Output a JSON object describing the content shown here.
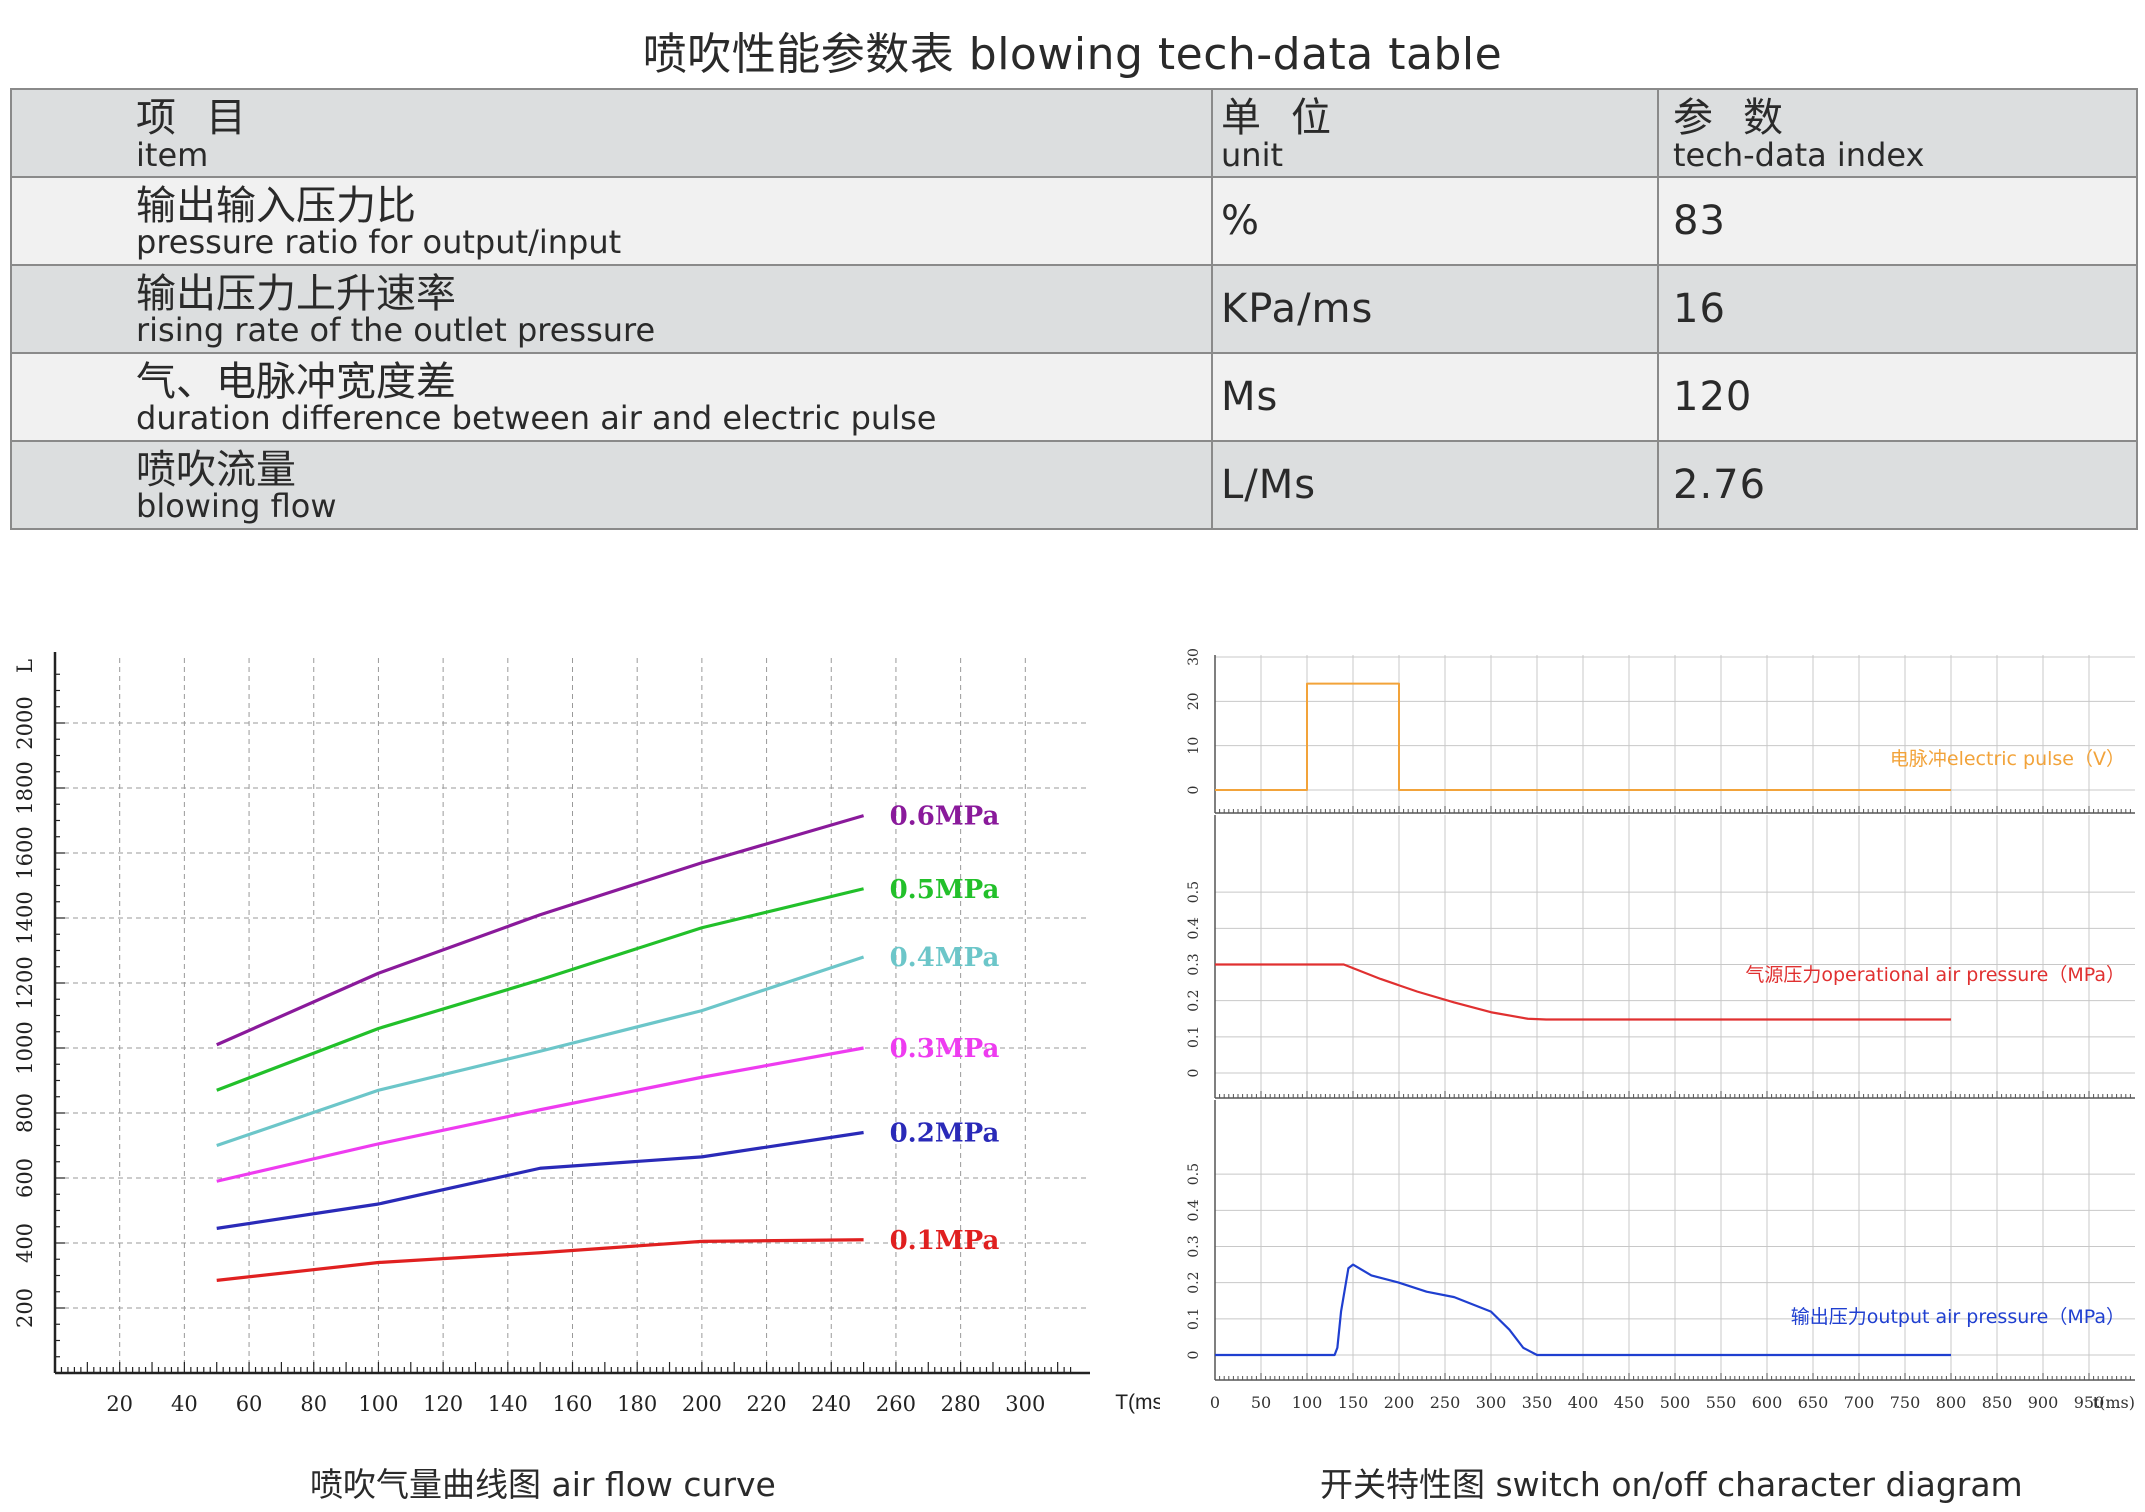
{
  "page": {
    "title": "喷吹性能参数表  blowing tech-data table"
  },
  "table": {
    "header": {
      "item_cn": "项目",
      "item_en": "item",
      "unit_cn": "单位",
      "unit_en": "unit",
      "value_cn": "参数",
      "value_en": "tech-data index"
    },
    "rows": [
      {
        "name_cn": "输出输入压力比",
        "name_en": "pressure ratio for output/input",
        "unit": "%",
        "value": "83"
      },
      {
        "name_cn": "输出压力上升速率",
        "name_en": "rising rate of the outlet pressure",
        "unit": "KPa/ms",
        "value": "16"
      },
      {
        "name_cn": "气、电脉冲宽度差",
        "name_en": "duration difference between air and electric pulse",
        "unit": "Ms",
        "value": "120"
      },
      {
        "name_cn": "喷吹流量",
        "name_en": "blowing flow",
        "unit": "L/Ms",
        "value": "2.76"
      }
    ]
  },
  "captions": {
    "left": "喷吹气量曲线图  air flow curve",
    "right": "开关特性图  switch on/off character diagram"
  },
  "chart_data": [
    {
      "type": "line",
      "title": "",
      "xlabel": "T(ms)",
      "ylabel": "L",
      "xlim": [
        0,
        320
      ],
      "ylim": [
        0,
        2200
      ],
      "x_ticks": [
        "20",
        "40",
        "60",
        "80",
        "100",
        "120",
        "140",
        "160",
        "180",
        "200",
        "220",
        "240",
        "260",
        "280",
        "300"
      ],
      "y_ticks": [
        "200",
        "400",
        "600",
        "800",
        "1000",
        "1200",
        "1400",
        "1600",
        "1800",
        "2000"
      ],
      "grid": true,
      "x": [
        50,
        100,
        150,
        200,
        250
      ],
      "series": [
        {
          "name": "0.6MPa",
          "color": "#8a1a9b",
          "values": [
            1010,
            1230,
            1410,
            1570,
            1715
          ]
        },
        {
          "name": "0.5MPa",
          "color": "#22c02a",
          "values": [
            870,
            1060,
            1210,
            1370,
            1490
          ]
        },
        {
          "name": "0.4MPa",
          "color": "#6cc6c9",
          "values": [
            700,
            870,
            990,
            1115,
            1280
          ]
        },
        {
          "name": "0.3MPa",
          "color": "#ee3cf0",
          "values": [
            590,
            705,
            810,
            910,
            1000
          ]
        },
        {
          "name": "0.2MPa",
          "color": "#2a2ab8",
          "values": [
            445,
            520,
            630,
            665,
            740
          ]
        },
        {
          "name": "0.1MPa",
          "color": "#e02020",
          "values": [
            285,
            340,
            370,
            405,
            410
          ]
        }
      ]
    },
    {
      "type": "line",
      "title": "",
      "xlabel": "t(ms)",
      "xlim": [
        0,
        1000
      ],
      "x_ticks": [
        "0",
        "50",
        "100",
        "150",
        "200",
        "250",
        "300",
        "350",
        "400",
        "450",
        "500",
        "550",
        "600",
        "650",
        "700",
        "750",
        "800",
        "850",
        "900",
        "950"
      ],
      "grid": true,
      "panels": [
        {
          "name": "电脉冲electric pulse（V）",
          "color": "#f2a33a",
          "ylim": [
            0,
            30
          ],
          "y_ticks": [
            "0",
            "10",
            "20",
            "30"
          ],
          "x": [
            0,
            100,
            100,
            200,
            200,
            800
          ],
          "y": [
            0,
            0,
            24,
            24,
            0,
            0
          ]
        },
        {
          "name": "气源压力operational air pressure（MPa）",
          "color": "#e03030",
          "ylim": [
            0,
            0.6
          ],
          "y_ticks": [
            "0",
            "0.1",
            "0.2",
            "0.3",
            "0.4",
            "0.5"
          ],
          "x": [
            0,
            120,
            140,
            180,
            220,
            260,
            300,
            340,
            360,
            800
          ],
          "y": [
            0.3,
            0.3,
            0.3,
            0.26,
            0.225,
            0.195,
            0.168,
            0.15,
            0.148,
            0.148
          ]
        },
        {
          "name": "输出压力output air pressure（MPa）",
          "color": "#1f3fd0",
          "ylim": [
            0,
            0.6
          ],
          "y_ticks": [
            "0",
            "0.1",
            "0.2",
            "0.3",
            "0.4",
            "0.5"
          ],
          "x": [
            0,
            130,
            133,
            137,
            145,
            150,
            170,
            200,
            230,
            260,
            300,
            320,
            335,
            350,
            800
          ],
          "y": [
            0,
            0,
            0.02,
            0.12,
            0.24,
            0.25,
            0.22,
            0.2,
            0.175,
            0.16,
            0.12,
            0.07,
            0.02,
            0,
            0
          ]
        }
      ]
    }
  ]
}
